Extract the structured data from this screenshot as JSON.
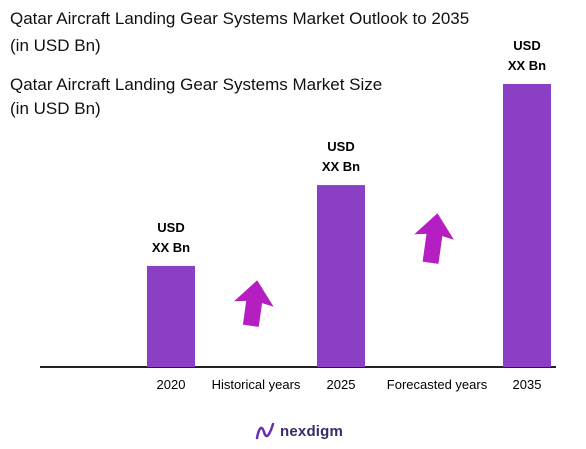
{
  "header": {
    "title_line1": "Qatar Aircraft Landing Gear Systems Market Outlook to 2035",
    "title_line2": "(in USD Bn)",
    "subtitle_line1": "Qatar Aircraft Landing Gear Systems Market Size",
    "subtitle_line2": "(in USD Bn)"
  },
  "chart_data": {
    "type": "bar",
    "categories": [
      "2020",
      "2025",
      "2035"
    ],
    "values": [
      100,
      180,
      280
    ],
    "value_labels": [
      [
        "USD",
        "XX Bn"
      ],
      [
        "USD",
        "XX Bn"
      ],
      [
        "USD",
        "XX Bn"
      ]
    ],
    "period_labels": [
      "Historical years",
      "Forecasted years"
    ],
    "bar_color": "#8a3fc4",
    "arrow_color": "#b51fc2",
    "grid": false,
    "legend": "none"
  },
  "brand": {
    "name": "nexdigm",
    "logo_color": "#6a2fb0"
  }
}
